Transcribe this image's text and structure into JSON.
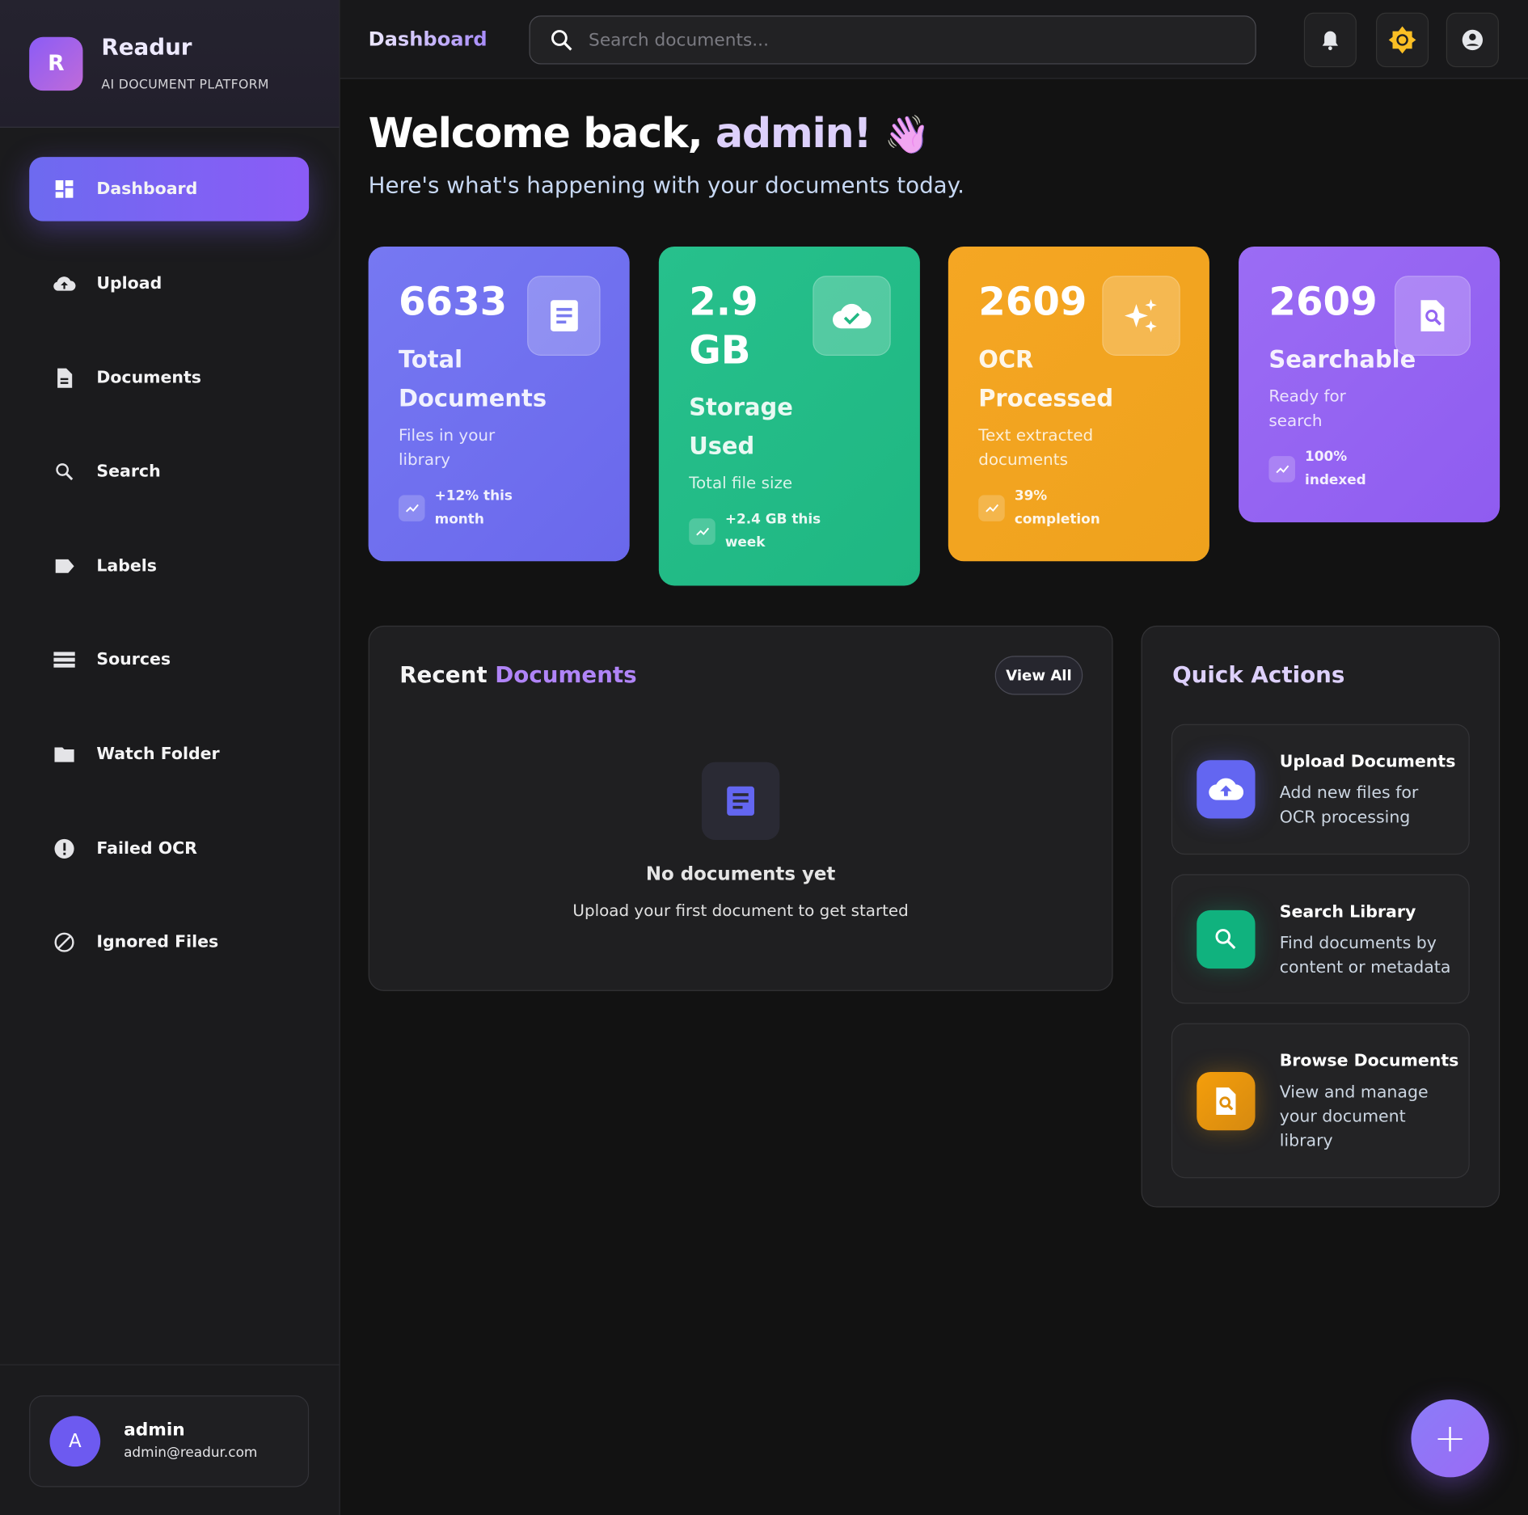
{
  "brand": {
    "logo_letter": "R",
    "name": "Readur",
    "tagline": "AI DOCUMENT PLATFORM"
  },
  "sidebar": {
    "items": [
      {
        "label": "Dashboard",
        "icon": "dashboard-icon",
        "active": true
      },
      {
        "label": "Upload",
        "icon": "cloud-upload-icon"
      },
      {
        "label": "Documents",
        "icon": "document-icon"
      },
      {
        "label": "Search",
        "icon": "search-icon"
      },
      {
        "label": "Labels",
        "icon": "label-icon"
      },
      {
        "label": "Sources",
        "icon": "storage-icon"
      },
      {
        "label": "Watch Folder",
        "icon": "folder-icon"
      },
      {
        "label": "Failed OCR",
        "icon": "error-icon"
      },
      {
        "label": "Ignored Files",
        "icon": "block-icon"
      }
    ]
  },
  "user": {
    "initial": "A",
    "name": "admin",
    "email": "admin@readur.com"
  },
  "header": {
    "title": "Dashboard",
    "search_placeholder": "Search documents..."
  },
  "welcome": {
    "title_a": "Welcome back,",
    "title_b": "admin!",
    "emoji": "👋",
    "subtitle": "Here's what's happening with your documents today."
  },
  "stats": [
    {
      "value": "6633",
      "label": "Total Documents",
      "desc": "Files in your library",
      "trend": "+12% this month",
      "color": "#6d6ef0"
    },
    {
      "value": "2.9 GB",
      "label": "Storage Used",
      "desc": "Total file size",
      "trend": "+2.4 GB this week",
      "color": "#22bd88"
    },
    {
      "value": "2609",
      "label": "OCR Processed",
      "desc": "Text extracted documents",
      "trend": "39% completion",
      "color": "#f3a31f"
    },
    {
      "value": "2609",
      "label": "Searchable",
      "desc": "Ready for search",
      "trend": "100% indexed",
      "color": "#9466f2"
    }
  ],
  "recent": {
    "title_a": "Recent",
    "title_b": "Documents",
    "view_all": "View All",
    "empty_title": "No documents yet",
    "empty_desc": "Upload your first document to get started"
  },
  "quick_actions": {
    "title": "Quick Actions",
    "items": [
      {
        "title": "Upload Documents",
        "desc": "Add new files for OCR processing",
        "color": "#6366f1"
      },
      {
        "title": "Search Library",
        "desc": "Find documents by content or metadata",
        "color": "#10b981"
      },
      {
        "title": "Browse Documents",
        "desc": "View and manage your document library",
        "color": "#f59e0b"
      }
    ]
  },
  "fab": {
    "label": "+"
  }
}
